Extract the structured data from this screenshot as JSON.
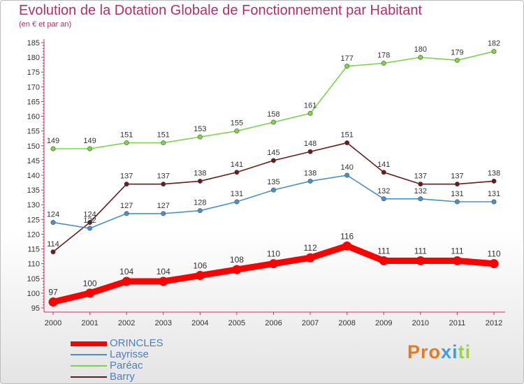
{
  "chart_data": {
    "type": "line",
    "title": "Evolution de la Dotation Globale de Fonctionnement par Habitant",
    "subtitle": "(en € et par an)",
    "x": [
      "2000",
      "2001",
      "2002",
      "2003",
      "2004",
      "2005",
      "2006",
      "2007",
      "2008",
      "2009",
      "2010",
      "2011",
      "2012"
    ],
    "ylim": [
      95,
      185
    ],
    "yticks": [
      95,
      100,
      105,
      110,
      115,
      120,
      125,
      130,
      135,
      140,
      145,
      150,
      155,
      160,
      165,
      170,
      175,
      180,
      185
    ],
    "grid": false,
    "legend_position": "bottom-left",
    "series": [
      {
        "name": "ORINCLES",
        "color": "#ff0000",
        "values": [
          97,
          100,
          104,
          104,
          106,
          108,
          110,
          112,
          116,
          111,
          111,
          111,
          110
        ],
        "labels": [
          "97",
          "100",
          "104",
          "104",
          "106",
          "108",
          "110",
          "112",
          "116",
          "111",
          "111",
          "111",
          "110"
        ]
      },
      {
        "name": "Layrisse",
        "color": "#4a90c8",
        "values": [
          124,
          122,
          127,
          127,
          128,
          131,
          135,
          138,
          140,
          132,
          132,
          131,
          131
        ],
        "labels": [
          "124",
          "122",
          "127",
          "127",
          "128",
          "131",
          "135",
          "138",
          "140",
          "132",
          "132",
          "131",
          "131"
        ]
      },
      {
        "name": "Paréac",
        "color": "#7ed348",
        "values": [
          149,
          149,
          151,
          151,
          153,
          155,
          158,
          161,
          177,
          178,
          180,
          179,
          182
        ],
        "labels": [
          "149",
          "149",
          "151",
          "151",
          "153",
          "155",
          "158",
          "161",
          "177",
          "178",
          "180",
          "179",
          "182"
        ]
      },
      {
        "name": "Barry",
        "color": "#6b1a1a",
        "values": [
          114,
          124,
          137,
          137,
          138,
          141,
          145,
          148,
          151,
          141,
          137,
          137,
          138
        ],
        "labels": [
          "114",
          "124",
          "137",
          "137",
          "138",
          "141",
          "145",
          "148",
          "151",
          "141",
          "137",
          "137",
          "138"
        ]
      }
    ]
  },
  "brand": {
    "text": "Proxiti",
    "colors": [
      "#e8791f",
      "#e8791f",
      "#e8791f",
      "#3aa0e0",
      "#3aa0e0",
      "#9bd146",
      "#9bd146"
    ]
  }
}
